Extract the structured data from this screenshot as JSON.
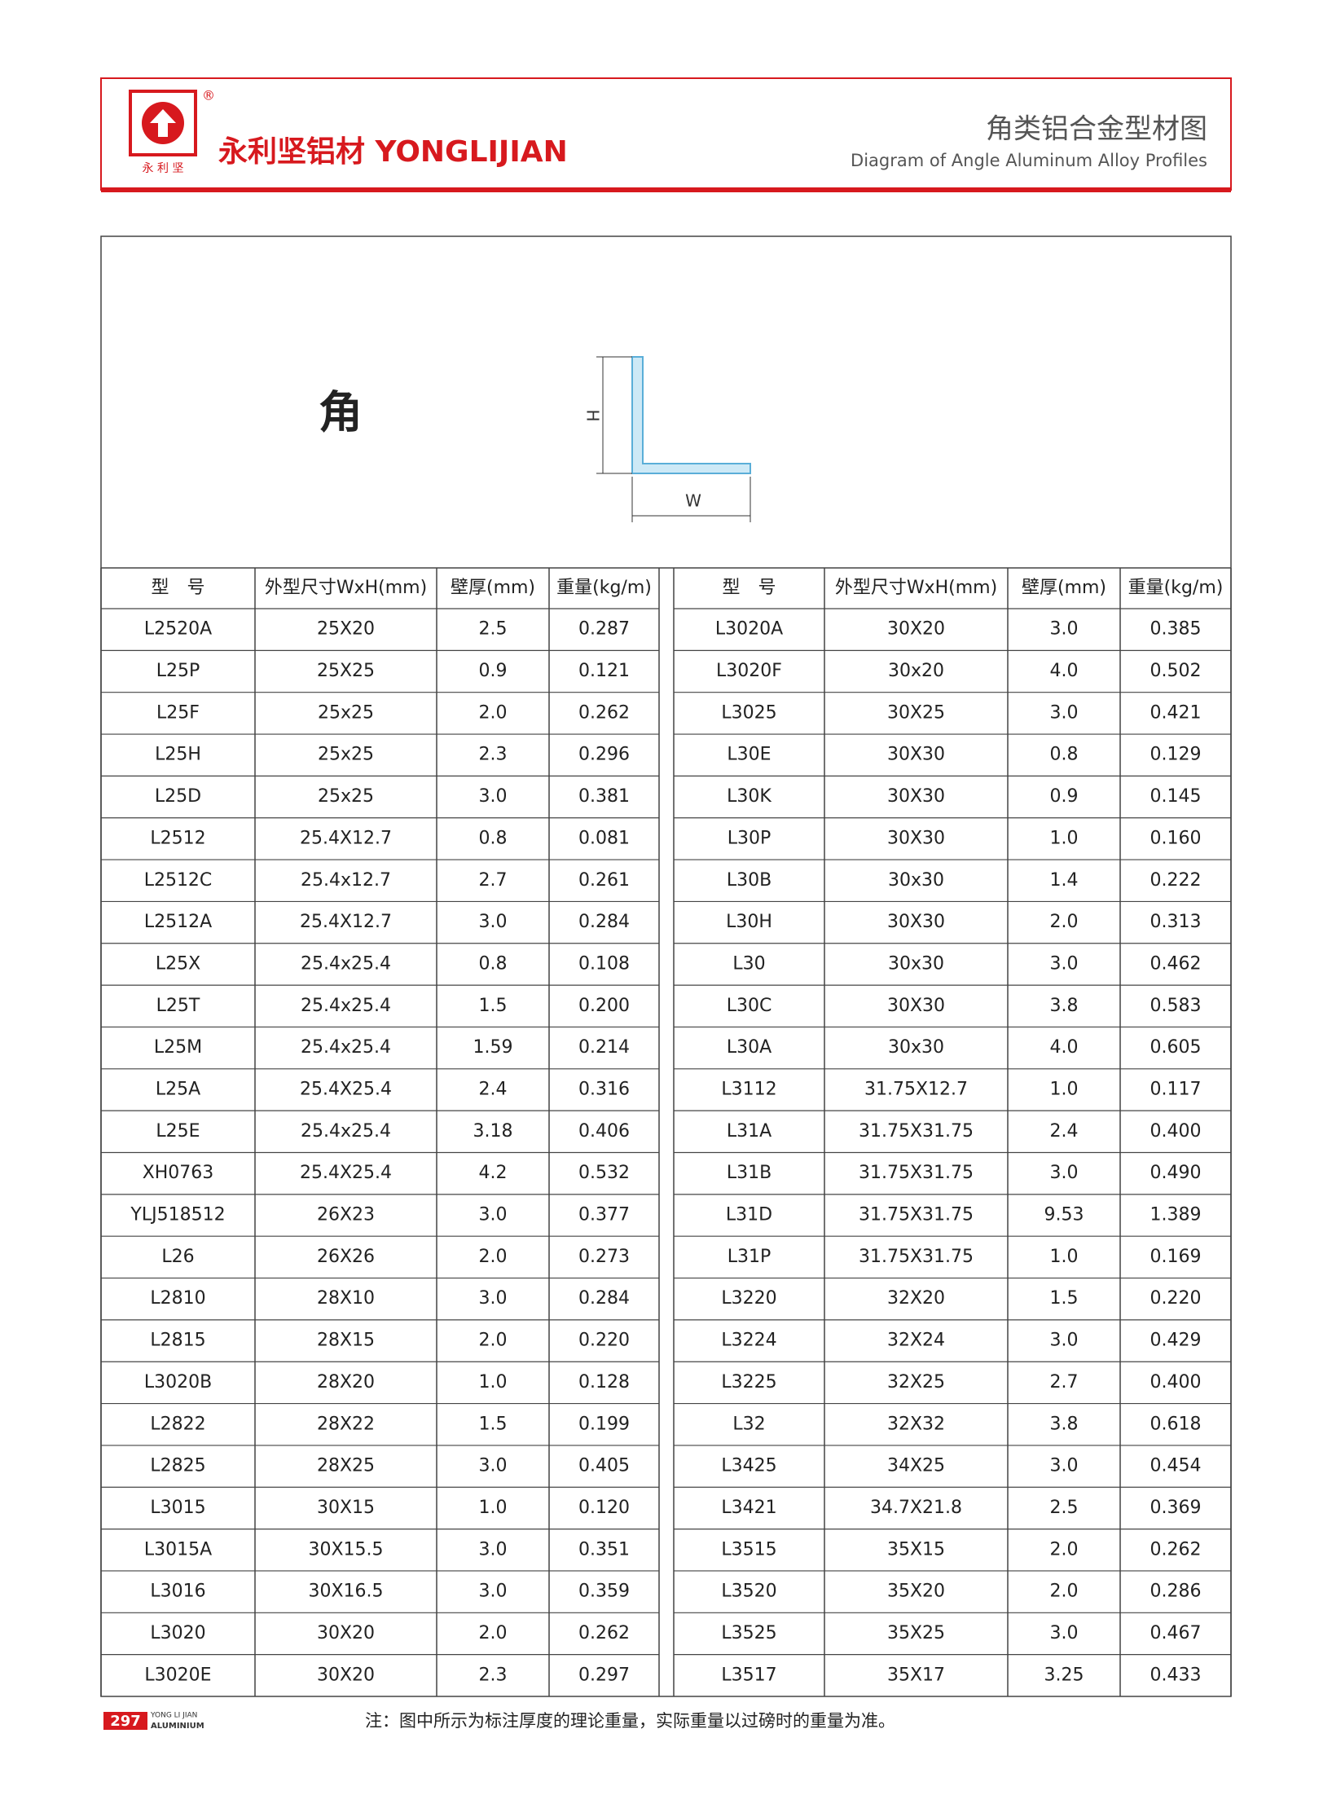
{
  "header": {
    "registered": "®",
    "logo_text": "永 利 坚",
    "brand": "永利坚铝材 YONGLIJIAN",
    "title_cn": "角类铝合金型材图",
    "title_en": "Diagram of Angle Aluminum Alloy Profiles"
  },
  "figure": {
    "label": "角",
    "h": "H",
    "w": "W"
  },
  "table": {
    "headers": [
      "型　号",
      "外型尺寸WxH(mm)",
      "壁厚(mm)",
      "重量(kg/m)"
    ],
    "left": [
      [
        "L2520A",
        "25X20",
        "2.5",
        "0.287"
      ],
      [
        "L25P",
        "25X25",
        "0.9",
        "0.121"
      ],
      [
        "L25F",
        "25x25",
        "2.0",
        "0.262"
      ],
      [
        "L25H",
        "25x25",
        "2.3",
        "0.296"
      ],
      [
        "L25D",
        "25x25",
        "3.0",
        "0.381"
      ],
      [
        "L2512",
        "25.4X12.7",
        "0.8",
        "0.081"
      ],
      [
        "L2512C",
        "25.4x12.7",
        "2.7",
        "0.261"
      ],
      [
        "L2512A",
        "25.4X12.7",
        "3.0",
        "0.284"
      ],
      [
        "L25X",
        "25.4x25.4",
        "0.8",
        "0.108"
      ],
      [
        "L25T",
        "25.4x25.4",
        "1.5",
        "0.200"
      ],
      [
        "L25M",
        "25.4x25.4",
        "1.59",
        "0.214"
      ],
      [
        "L25A",
        "25.4X25.4",
        "2.4",
        "0.316"
      ],
      [
        "L25E",
        "25.4x25.4",
        "3.18",
        "0.406"
      ],
      [
        "XH0763",
        "25.4X25.4",
        "4.2",
        "0.532"
      ],
      [
        "YLJ518512",
        "26X23",
        "3.0",
        "0.377"
      ],
      [
        "L26",
        "26X26",
        "2.0",
        "0.273"
      ],
      [
        "L2810",
        "28X10",
        "3.0",
        "0.284"
      ],
      [
        "L2815",
        "28X15",
        "2.0",
        "0.220"
      ],
      [
        "L3020B",
        "28X20",
        "1.0",
        "0.128"
      ],
      [
        "L2822",
        "28X22",
        "1.5",
        "0.199"
      ],
      [
        "L2825",
        "28X25",
        "3.0",
        "0.405"
      ],
      [
        "L3015",
        "30X15",
        "1.0",
        "0.120"
      ],
      [
        "L3015A",
        "30X15.5",
        "3.0",
        "0.351"
      ],
      [
        "L3016",
        "30X16.5",
        "3.0",
        "0.359"
      ],
      [
        "L3020",
        "30X20",
        "2.0",
        "0.262"
      ],
      [
        "L3020E",
        "30X20",
        "2.3",
        "0.297"
      ]
    ],
    "right": [
      [
        "L3020A",
        "30X20",
        "3.0",
        "0.385"
      ],
      [
        "L3020F",
        "30x20",
        "4.0",
        "0.502"
      ],
      [
        "L3025",
        "30X25",
        "3.0",
        "0.421"
      ],
      [
        "L30E",
        "30X30",
        "0.8",
        "0.129"
      ],
      [
        "L30K",
        "30X30",
        "0.9",
        "0.145"
      ],
      [
        "L30P",
        "30X30",
        "1.0",
        "0.160"
      ],
      [
        "L30B",
        "30x30",
        "1.4",
        "0.222"
      ],
      [
        "L30H",
        "30X30",
        "2.0",
        "0.313"
      ],
      [
        "L30",
        "30x30",
        "3.0",
        "0.462"
      ],
      [
        "L30C",
        "30X30",
        "3.8",
        "0.583"
      ],
      [
        "L30A",
        "30x30",
        "4.0",
        "0.605"
      ],
      [
        "L3112",
        "31.75X12.7",
        "1.0",
        "0.117"
      ],
      [
        "L31A",
        "31.75X31.75",
        "2.4",
        "0.400"
      ],
      [
        "L31B",
        "31.75X31.75",
        "3.0",
        "0.490"
      ],
      [
        "L31D",
        "31.75X31.75",
        "9.53",
        "1.389"
      ],
      [
        "L31P",
        "31.75X31.75",
        "1.0",
        "0.169"
      ],
      [
        "L3220",
        "32X20",
        "1.5",
        "0.220"
      ],
      [
        "L3224",
        "32X24",
        "3.0",
        "0.429"
      ],
      [
        "L3225",
        "32X25",
        "2.7",
        "0.400"
      ],
      [
        "L32",
        "32X32",
        "3.8",
        "0.618"
      ],
      [
        "L3425",
        "34X25",
        "3.0",
        "0.454"
      ],
      [
        "L3421",
        "34.7X21.8",
        "2.5",
        "0.369"
      ],
      [
        "L3515",
        "35X15",
        "2.0",
        "0.262"
      ],
      [
        "L3520",
        "35X20",
        "2.0",
        "0.286"
      ],
      [
        "L3525",
        "35X25",
        "3.0",
        "0.467"
      ],
      [
        "L3517",
        "35X17",
        "3.25",
        "0.433"
      ]
    ]
  },
  "footer": {
    "page": "297",
    "brand_small": "YONG LI JIAN",
    "brand_sub": "ALUMINIUM",
    "note": "注：图中所示为标注厚度的理论重量，实际重量以过磅时的重量为准。"
  }
}
